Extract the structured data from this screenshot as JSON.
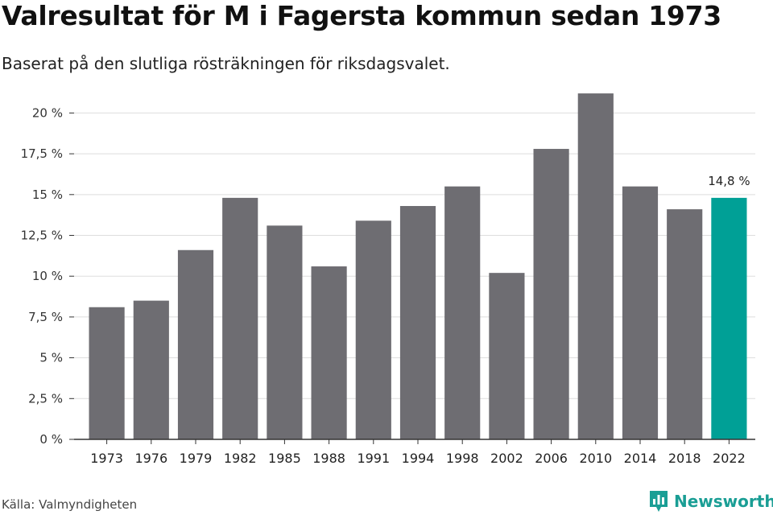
{
  "header": {
    "title": "Valresultat för M i Fagersta kommun sedan 1973",
    "subtitle": "Baserat på den slutliga rösträkningen för riksdagsvalet."
  },
  "footer": {
    "source": "Källa: Valmyndigheten",
    "brand": "Newsworthy"
  },
  "colors": {
    "bar": "#6e6d72",
    "highlight": "#00a096",
    "grid": "#dddddd",
    "axis": "#333333",
    "brand": "#1a9e95"
  },
  "chart_data": {
    "type": "bar",
    "title": "Valresultat för M i Fagersta kommun sedan 1973",
    "subtitle": "Baserat på den slutliga rösträkningen för riksdagsvalet.",
    "xlabel": "",
    "ylabel": "",
    "categories": [
      "1973",
      "1976",
      "1979",
      "1982",
      "1985",
      "1988",
      "1991",
      "1994",
      "1998",
      "2002",
      "2006",
      "2010",
      "2014",
      "2018",
      "2022"
    ],
    "values": [
      8.1,
      8.5,
      11.6,
      14.8,
      13.1,
      10.6,
      13.4,
      14.3,
      15.5,
      10.2,
      17.8,
      21.2,
      15.5,
      14.1,
      14.8
    ],
    "ylim": [
      0,
      21.5
    ],
    "yticks": [
      0,
      2.5,
      5,
      7.5,
      10,
      12.5,
      15,
      17.5,
      20
    ],
    "ytick_labels": [
      "0 %",
      "2,5 %",
      "5 %",
      "7,5 %",
      "10 %",
      "12,5 %",
      "15 %",
      "17,5 %",
      "20 %"
    ],
    "highlight_index": 14,
    "data_labels": [
      {
        "index": 14,
        "text": "14,8 %"
      }
    ],
    "grid": true,
    "legend": "none"
  }
}
